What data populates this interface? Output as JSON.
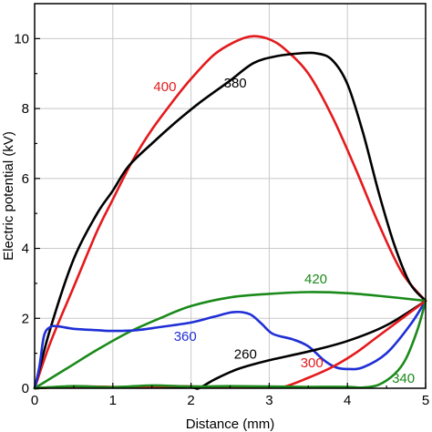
{
  "chart_data": {
    "type": "line",
    "xlabel": "Distance (mm)",
    "ylabel": "Electric potential (kV)",
    "xlim": [
      0,
      5
    ],
    "ylim": [
      0,
      11
    ],
    "xticks": [
      "0",
      "1",
      "2",
      "3",
      "4",
      "5"
    ],
    "yticks": [
      "0",
      "2",
      "4",
      "6",
      "8",
      "10"
    ],
    "grid": true,
    "colors": {
      "black": "#000000",
      "red": "#e41a1c",
      "green": "#1a8a1a",
      "blue": "#1f2fd6"
    },
    "series": [
      {
        "name": "400",
        "color": "#e41a1c",
        "points": [
          [
            0,
            0
          ],
          [
            0.2,
            1.3
          ],
          [
            0.5,
            2.9
          ],
          [
            0.8,
            4.5
          ],
          [
            1.0,
            5.4
          ],
          [
            1.25,
            6.5
          ],
          [
            1.5,
            7.4
          ],
          [
            1.8,
            8.3
          ],
          [
            2.0,
            8.85
          ],
          [
            2.3,
            9.55
          ],
          [
            2.6,
            9.95
          ],
          [
            2.8,
            10.07
          ],
          [
            3.0,
            9.98
          ],
          [
            3.2,
            9.7
          ],
          [
            3.5,
            9.0
          ],
          [
            3.8,
            7.8
          ],
          [
            4.1,
            6.3
          ],
          [
            4.4,
            4.7
          ],
          [
            4.7,
            3.3
          ],
          [
            5.0,
            2.5
          ]
        ]
      },
      {
        "name": "380",
        "color": "#000000",
        "points": [
          [
            0,
            0
          ],
          [
            0.2,
            1.7
          ],
          [
            0.5,
            3.7
          ],
          [
            0.8,
            5.0
          ],
          [
            1.0,
            5.65
          ],
          [
            1.2,
            6.35
          ],
          [
            1.5,
            7.0
          ],
          [
            1.8,
            7.6
          ],
          [
            2.1,
            8.15
          ],
          [
            2.5,
            8.8
          ],
          [
            2.8,
            9.3
          ],
          [
            3.1,
            9.5
          ],
          [
            3.4,
            9.58
          ],
          [
            3.6,
            9.58
          ],
          [
            3.8,
            9.4
          ],
          [
            4.0,
            8.7
          ],
          [
            4.2,
            7.3
          ],
          [
            4.4,
            5.6
          ],
          [
            4.6,
            4.1
          ],
          [
            4.8,
            3.0
          ],
          [
            5.0,
            2.5
          ]
        ]
      },
      {
        "name": "420",
        "color": "#1a8a1a",
        "points": [
          [
            0,
            0
          ],
          [
            0.4,
            0.55
          ],
          [
            0.8,
            1.1
          ],
          [
            1.2,
            1.6
          ],
          [
            1.6,
            2.0
          ],
          [
            2.0,
            2.35
          ],
          [
            2.5,
            2.6
          ],
          [
            3.0,
            2.7
          ],
          [
            3.5,
            2.75
          ],
          [
            4.0,
            2.72
          ],
          [
            4.5,
            2.62
          ],
          [
            5.0,
            2.5
          ]
        ]
      },
      {
        "name": "360",
        "color": "#1f2fd6",
        "points": [
          [
            0,
            0
          ],
          [
            0.06,
            0.6
          ],
          [
            0.12,
            1.5
          ],
          [
            0.2,
            1.75
          ],
          [
            0.3,
            1.77
          ],
          [
            0.5,
            1.7
          ],
          [
            0.8,
            1.66
          ],
          [
            1.0,
            1.64
          ],
          [
            1.3,
            1.66
          ],
          [
            1.6,
            1.75
          ],
          [
            2.0,
            1.88
          ],
          [
            2.3,
            2.05
          ],
          [
            2.55,
            2.18
          ],
          [
            2.75,
            2.12
          ],
          [
            2.9,
            1.85
          ],
          [
            3.05,
            1.55
          ],
          [
            3.3,
            1.4
          ],
          [
            3.5,
            1.2
          ],
          [
            3.7,
            0.8
          ],
          [
            3.85,
            0.6
          ],
          [
            4.0,
            0.55
          ],
          [
            4.2,
            0.6
          ],
          [
            4.5,
            1.0
          ],
          [
            4.8,
            1.8
          ],
          [
            5.0,
            2.5
          ]
        ]
      },
      {
        "name": "260",
        "color": "#000000",
        "points": [
          [
            0,
            0
          ],
          [
            0.5,
            0.05
          ],
          [
            1.0,
            0.03
          ],
          [
            1.5,
            0.05
          ],
          [
            2.0,
            0.02
          ],
          [
            2.1,
            0.0
          ],
          [
            2.3,
            0.25
          ],
          [
            2.6,
            0.55
          ],
          [
            3.0,
            0.8
          ],
          [
            3.5,
            1.05
          ],
          [
            4.0,
            1.35
          ],
          [
            4.5,
            1.8
          ],
          [
            5.0,
            2.5
          ]
        ]
      },
      {
        "name": "300",
        "color": "#e41a1c",
        "points": [
          [
            0,
            0
          ],
          [
            0.6,
            0.05
          ],
          [
            1.2,
            0.03
          ],
          [
            1.8,
            0.06
          ],
          [
            2.4,
            0.03
          ],
          [
            3.0,
            0.03
          ],
          [
            3.2,
            0.05
          ],
          [
            3.5,
            0.3
          ],
          [
            3.8,
            0.6
          ],
          [
            4.1,
            1.0
          ],
          [
            4.4,
            1.5
          ],
          [
            4.7,
            2.0
          ],
          [
            5.0,
            2.5
          ]
        ]
      },
      {
        "name": "340",
        "color": "#1a8a1a",
        "points": [
          [
            0,
            0
          ],
          [
            0.5,
            0.06
          ],
          [
            1.0,
            0.03
          ],
          [
            1.5,
            0.08
          ],
          [
            2.0,
            0.05
          ],
          [
            2.5,
            0.06
          ],
          [
            3.0,
            0.05
          ],
          [
            3.5,
            0.04
          ],
          [
            4.0,
            0.04
          ],
          [
            4.2,
            0.02
          ],
          [
            4.4,
            0.1
          ],
          [
            4.6,
            0.4
          ],
          [
            4.75,
            0.85
          ],
          [
            4.9,
            1.7
          ],
          [
            5.0,
            2.5
          ]
        ]
      }
    ],
    "annotations": [
      {
        "text": "400",
        "x": 1.52,
        "y": 8.5,
        "color": "#e41a1c"
      },
      {
        "text": "380",
        "x": 2.42,
        "y": 8.6,
        "color": "#000000"
      },
      {
        "text": "420",
        "x": 3.45,
        "y": 3.0,
        "color": "#1a8a1a"
      },
      {
        "text": "360",
        "x": 1.78,
        "y": 1.35,
        "color": "#1f2fd6"
      },
      {
        "text": "260",
        "x": 2.55,
        "y": 0.85,
        "color": "#000000"
      },
      {
        "text": "300",
        "x": 3.4,
        "y": 0.6,
        "color": "#e41a1c"
      },
      {
        "text": "340",
        "x": 4.57,
        "y": 0.15,
        "color": "#1a8a1a"
      }
    ]
  }
}
